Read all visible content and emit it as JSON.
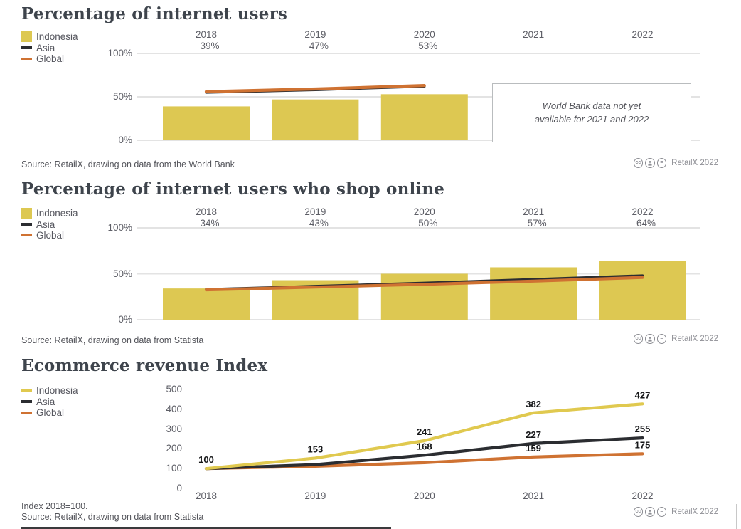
{
  "page": {
    "license_label": "RetailX 2022",
    "footnote": "Index 2018=100."
  },
  "chart_data": [
    {
      "type": "bar",
      "title": "Percentage of internet users",
      "categories": [
        "2018",
        "2019",
        "2020",
        "2021",
        "2022"
      ],
      "category_values": [
        "39%",
        "47%",
        "53%",
        "",
        ""
      ],
      "ylim": [
        0,
        100
      ],
      "yticks": [
        {
          "label": "100%",
          "value": 100
        },
        {
          "label": "50%",
          "value": 50
        },
        {
          "label": "0%",
          "value": 0
        }
      ],
      "grid": true,
      "legend_position": "left",
      "series": [
        {
          "name": "Indonesia",
          "render": "bar",
          "color": "#ddc852",
          "values": [
            39,
            47,
            53,
            null,
            null
          ]
        },
        {
          "name": "Asia",
          "render": "line",
          "color": "#2b2d31",
          "values": [
            55,
            58,
            62,
            null,
            null
          ]
        },
        {
          "name": "Global",
          "render": "line",
          "color": "#cf7232",
          "values": [
            56,
            59,
            63,
            null,
            null
          ]
        }
      ],
      "annotation": "World Bank data not yet available for 2021 and 2022",
      "source": "Source: RetailX, drawing on data from the World Bank",
      "license": "RetailX 2022"
    },
    {
      "type": "bar",
      "title": "Percentage of internet users who shop online",
      "categories": [
        "2018",
        "2019",
        "2020",
        "2021",
        "2022"
      ],
      "category_values": [
        "34%",
        "43%",
        "50%",
        "57%",
        "64%"
      ],
      "ylim": [
        0,
        100
      ],
      "yticks": [
        {
          "label": "100%",
          "value": 100
        },
        {
          "label": "50%",
          "value": 50
        },
        {
          "label": "0%",
          "value": 0
        }
      ],
      "grid": true,
      "legend_position": "left",
      "series": [
        {
          "name": "Indonesia",
          "render": "bar",
          "color": "#ddc852",
          "values": [
            34,
            43,
            50,
            57,
            64
          ]
        },
        {
          "name": "Asia",
          "render": "line",
          "color": "#2b2d31",
          "values": [
            33,
            36.5,
            40,
            44,
            48
          ]
        },
        {
          "name": "Global",
          "render": "line",
          "color": "#cf7232",
          "values": [
            32.5,
            35.5,
            38.5,
            42,
            46
          ]
        }
      ],
      "source": "Source: RetailX, drawing on data from Statista",
      "license": "RetailX 2022"
    },
    {
      "type": "line",
      "title": "Ecommerce revenue Index",
      "categories": [
        "2018",
        "2019",
        "2020",
        "2021",
        "2022"
      ],
      "ylim": [
        0,
        500
      ],
      "yticks": [
        {
          "label": "500",
          "value": 500
        },
        {
          "label": "400",
          "value": 400
        },
        {
          "label": "300",
          "value": 300
        },
        {
          "label": "200",
          "value": 200
        },
        {
          "label": "100",
          "value": 100
        },
        {
          "label": "0",
          "value": 0
        }
      ],
      "grid": false,
      "legend_position": "left",
      "series": [
        {
          "name": "Indonesia",
          "render": "line",
          "color": "#e0c94f",
          "values": [
            100,
            153,
            241,
            382,
            427
          ],
          "labels": [
            "100",
            "153",
            "241",
            "382",
            "427"
          ]
        },
        {
          "name": "Asia",
          "render": "line",
          "color": "#2b2d31",
          "values": [
            100,
            120,
            168,
            227,
            255
          ],
          "labels": [
            "",
            "",
            "168",
            "227",
            "255"
          ]
        },
        {
          "name": "Global",
          "render": "line",
          "color": "#cf7232",
          "values": [
            100,
            112,
            130,
            159,
            175
          ],
          "labels": [
            "",
            "",
            "",
            "159",
            "175"
          ]
        }
      ],
      "footnote": "Index 2018=100.",
      "source": "Source: RetailX, drawing on data from Statista",
      "license": "RetailX 2022"
    }
  ]
}
